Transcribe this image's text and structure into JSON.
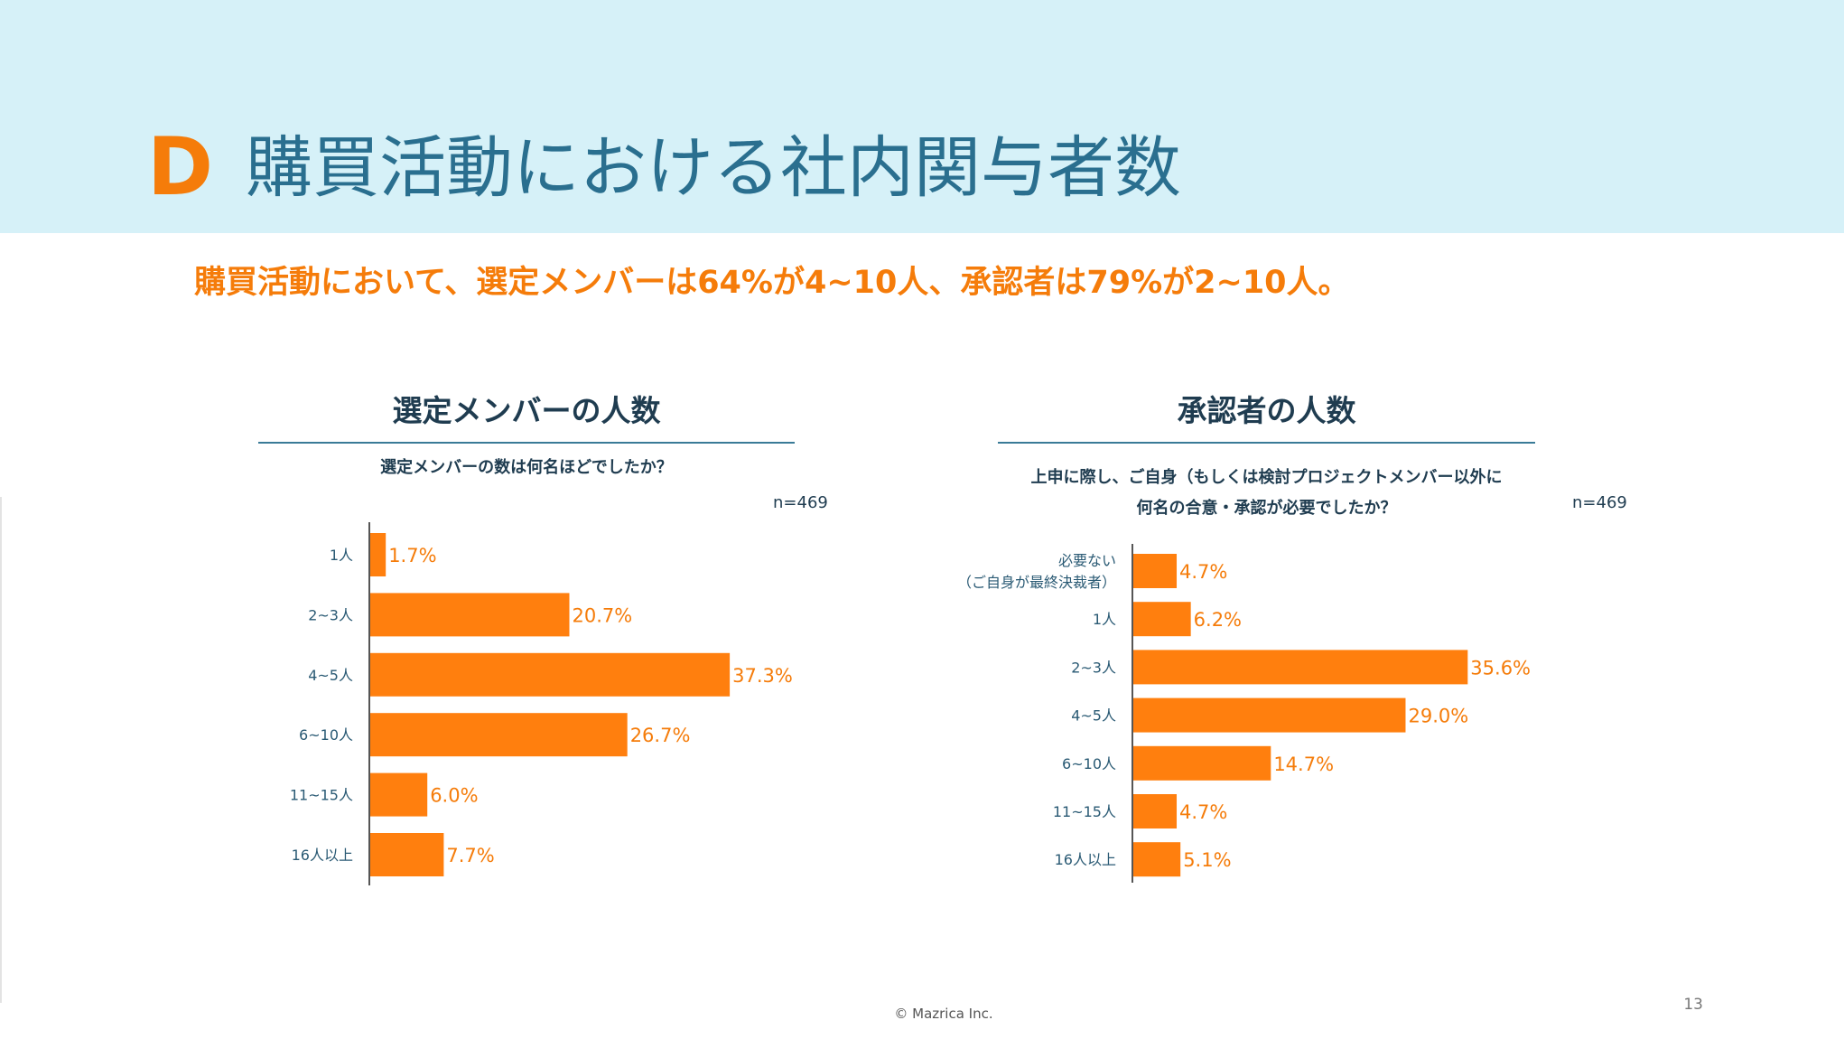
{
  "header": {
    "section_letter": "D",
    "title": "購買活動における社内関与者数"
  },
  "headline": "購買活動において、選定メンバーは64%が4~10人、承認者は79%が2~10人。",
  "footer": {
    "copyright": "© Mazrica Inc.",
    "page_number": "13"
  },
  "colors": {
    "accent": "#f57c0a",
    "bar": "#ff7f0e",
    "header_band": "#d6f1f8",
    "title": "#2a6f8f",
    "dark_text": "#1f3c50"
  },
  "chart_data": [
    {
      "type": "bar",
      "orientation": "horizontal",
      "title": "選定メンバーの人数",
      "question": "選定メンバーの数は何名ほどでしたか？",
      "n_label": "n=469",
      "categories": [
        "1人",
        "2~3人",
        "4~5人",
        "6~10人",
        "11~15人",
        "16人以上"
      ],
      "values": [
        1.7,
        20.7,
        37.3,
        26.7,
        6.0,
        7.7
      ],
      "value_labels": [
        "1.7%",
        "20.7%",
        "37.3%",
        "26.7%",
        "6.0%",
        "7.7%"
      ],
      "unit": "%",
      "xlim": [
        0,
        45
      ]
    },
    {
      "type": "bar",
      "orientation": "horizontal",
      "title": "承認者の人数",
      "question": "上申に際し、ご自身（もしくは検討プロジェクトメンバー以外に\n何名の合意・承認が必要でしたか？",
      "n_label": "n=469",
      "categories": [
        "必要ない\n（ご自身が最終決裁者）",
        "1人",
        "2~3人",
        "4~5人",
        "6~10人",
        "11~15人",
        "16人以上"
      ],
      "values": [
        4.7,
        6.2,
        35.6,
        29.0,
        14.7,
        4.7,
        5.1
      ],
      "value_labels": [
        "4.7%",
        "6.2%",
        "35.6%",
        "29.0%",
        "14.7%",
        "4.7%",
        "5.1%"
      ],
      "unit": "%",
      "xlim": [
        0,
        41.2
      ]
    }
  ]
}
